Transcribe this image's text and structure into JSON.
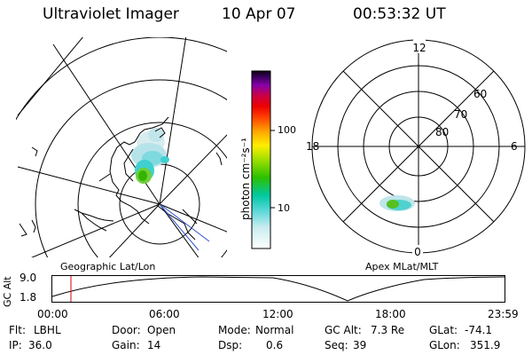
{
  "header": {
    "title": "Ultraviolet Imager",
    "date": "10 Apr 07",
    "time": "00:53:32 UT"
  },
  "left_panel": {
    "caption": "Geographic Lat/Lon"
  },
  "right_panel": {
    "caption": "Apex MLat/MLT",
    "mlt_labels": [
      "12",
      "18",
      "6",
      "0"
    ],
    "mlat_labels": [
      "60",
      "70",
      "80"
    ]
  },
  "colorbar": {
    "unit_label": "photon cm⁻²s⁻¹",
    "ticks": [
      "100",
      "10"
    ]
  },
  "timeline": {
    "y_label": "GC Alt",
    "y_ticks": [
      "9.0",
      "1.8"
    ],
    "x_ticks": [
      "00:00",
      "06:00",
      "12:00",
      "18:00",
      "23:59"
    ],
    "marker_color": "#dd0000"
  },
  "status": {
    "row1": [
      {
        "key": "Flt:",
        "value": "LBHL"
      },
      {
        "key": "Door:",
        "value": "Open"
      },
      {
        "key": "Mode:",
        "value": "Normal"
      },
      {
        "key": "GC Alt:",
        "value": "7.3 Re"
      },
      {
        "key": "GLat:",
        "value": "-74.1"
      }
    ],
    "row2": [
      {
        "key": "IP:",
        "value": "36.0"
      },
      {
        "key": "Gain:",
        "value": "14"
      },
      {
        "key": "Dsp:",
        "value": "0.6"
      },
      {
        "key": "Seq:",
        "value": "39"
      },
      {
        "key": "GLon:",
        "value": "351.9"
      }
    ]
  }
}
